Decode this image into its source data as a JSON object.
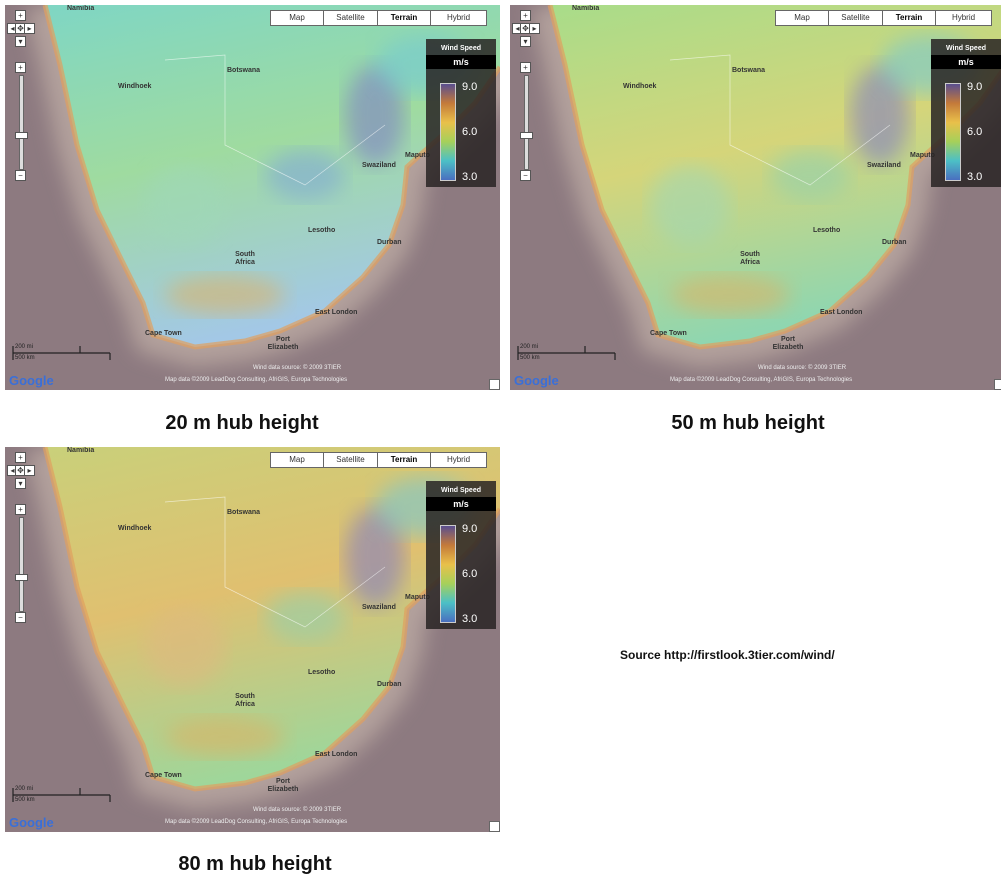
{
  "panels": [
    {
      "caption": "20 m hub height",
      "map_types": [
        "Map",
        "Satellite",
        "Terrain",
        "Hybrid"
      ],
      "legend": {
        "title": "Wind Speed",
        "unit": "m/s",
        "ticks": [
          "9.0",
          "6.0",
          "3.0"
        ]
      },
      "places": [
        "Namibia",
        "Windhoek",
        "Botswana",
        "Swaziland",
        "Maputo",
        "Lesotho",
        "Durban",
        "South Africa",
        "East London",
        "Port Elizabeth",
        "Cape Town"
      ],
      "scale": [
        "200 mi",
        "500 km"
      ],
      "logo": "Google",
      "attribution": [
        "Wind data source: © 2009 3TIER",
        "Map data ©2009 LeadDog Consulting, AfriGIS, Europa Technologies"
      ]
    },
    {
      "caption": "50 m hub height",
      "map_types": [
        "Map",
        "Satellite",
        "Terrain",
        "Hybrid"
      ],
      "legend": {
        "title": "Wind Speed",
        "unit": "m/s",
        "ticks": [
          "9.0",
          "6.0",
          "3.0"
        ]
      },
      "places": [
        "Namibia",
        "Windhoek",
        "Botswana",
        "Swaziland",
        "Maputo",
        "Lesotho",
        "Durban",
        "South Africa",
        "East London",
        "Port Elizabeth",
        "Cape Town"
      ],
      "scale": [
        "200 mi",
        "500 km"
      ],
      "logo": "Google",
      "attribution": [
        "Wind data source: © 2009 3TIER",
        "Map data ©2009 LeadDog Consulting, AfriGIS, Europa Technologies"
      ]
    },
    {
      "caption": "80 m hub height",
      "map_types": [
        "Map",
        "Satellite",
        "Terrain",
        "Hybrid"
      ],
      "legend": {
        "title": "Wind Speed",
        "unit": "m/s",
        "ticks": [
          "9.0",
          "6.0",
          "3.0"
        ]
      },
      "places": [
        "Namibia",
        "Windhoek",
        "Botswana",
        "Swaziland",
        "Maputo",
        "Lesotho",
        "Durban",
        "South Africa",
        "East London",
        "Port Elizabeth",
        "Cape Town"
      ],
      "scale": [
        "200 mi",
        "500 km"
      ],
      "logo": "Google",
      "attribution": [
        "Wind data source: © 2009 3TIER",
        "Map data ©2009 LeadDog Consulting, AfriGIS, Europa Technologies"
      ]
    }
  ],
  "source": "Source http://firstlook.3tier.com/wind/"
}
